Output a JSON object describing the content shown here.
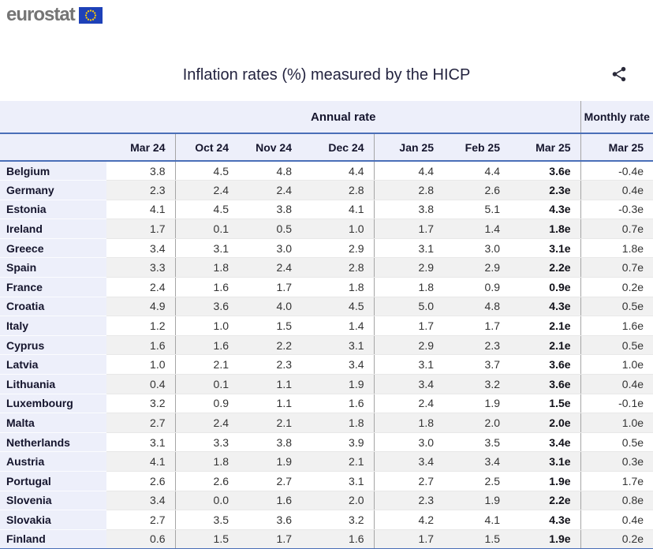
{
  "logo": {
    "text": "eurostat"
  },
  "header": {
    "title": "Inflation rates (%) measured by the HICP"
  },
  "icons": {
    "eu_flag": "eu-flag-icon",
    "share": "share-icon"
  },
  "colors": {
    "accent_blue_line": "#4a6fb8",
    "header_bg": "#edeffa",
    "stripe_bg": "#f1f1f1",
    "divider_gray": "#a5a5a5",
    "logo_gray": "#757575",
    "eu_flag_blue": "#1e41b8",
    "star_yellow": "#ffcc00",
    "text_dark": "#15152d"
  },
  "chart_data": {
    "type": "table",
    "title": "Inflation rates (%) measured by the HICP",
    "column_groups": [
      {
        "label": "Annual rate",
        "span": 7
      },
      {
        "label": "Monthly rate",
        "span": 1
      }
    ],
    "annual_header": "Annual rate",
    "monthly_header": "Monthly rate",
    "columns": [
      "Mar 24",
      "Oct 24",
      "Nov 24",
      "Dec 24",
      "Jan 25",
      "Feb 25",
      "Mar 25"
    ],
    "monthly_column": "Mar 25",
    "rows": [
      {
        "country": "Belgium",
        "annual": [
          "3.8",
          "4.5",
          "4.8",
          "4.4",
          "4.4",
          "4.4",
          "3.6e"
        ],
        "monthly": "-0.4e"
      },
      {
        "country": "Germany",
        "annual": [
          "2.3",
          "2.4",
          "2.4",
          "2.8",
          "2.8",
          "2.6",
          "2.3e"
        ],
        "monthly": "0.4e"
      },
      {
        "country": "Estonia",
        "annual": [
          "4.1",
          "4.5",
          "3.8",
          "4.1",
          "3.8",
          "5.1",
          "4.3e"
        ],
        "monthly": "-0.3e"
      },
      {
        "country": "Ireland",
        "annual": [
          "1.7",
          "0.1",
          "0.5",
          "1.0",
          "1.7",
          "1.4",
          "1.8e"
        ],
        "monthly": "0.7e"
      },
      {
        "country": "Greece",
        "annual": [
          "3.4",
          "3.1",
          "3.0",
          "2.9",
          "3.1",
          "3.0",
          "3.1e"
        ],
        "monthly": "1.8e"
      },
      {
        "country": "Spain",
        "annual": [
          "3.3",
          "1.8",
          "2.4",
          "2.8",
          "2.9",
          "2.9",
          "2.2e"
        ],
        "monthly": "0.7e"
      },
      {
        "country": "France",
        "annual": [
          "2.4",
          "1.6",
          "1.7",
          "1.8",
          "1.8",
          "0.9",
          "0.9e"
        ],
        "monthly": "0.2e"
      },
      {
        "country": "Croatia",
        "annual": [
          "4.9",
          "3.6",
          "4.0",
          "4.5",
          "5.0",
          "4.8",
          "4.3e"
        ],
        "monthly": "0.5e"
      },
      {
        "country": "Italy",
        "annual": [
          "1.2",
          "1.0",
          "1.5",
          "1.4",
          "1.7",
          "1.7",
          "2.1e"
        ],
        "monthly": "1.6e"
      },
      {
        "country": "Cyprus",
        "annual": [
          "1.6",
          "1.6",
          "2.2",
          "3.1",
          "2.9",
          "2.3",
          "2.1e"
        ],
        "monthly": "0.5e"
      },
      {
        "country": "Latvia",
        "annual": [
          "1.0",
          "2.1",
          "2.3",
          "3.4",
          "3.1",
          "3.7",
          "3.6e"
        ],
        "monthly": "1.0e"
      },
      {
        "country": "Lithuania",
        "annual": [
          "0.4",
          "0.1",
          "1.1",
          "1.9",
          "3.4",
          "3.2",
          "3.6e"
        ],
        "monthly": "0.4e"
      },
      {
        "country": "Luxembourg",
        "annual": [
          "3.2",
          "0.9",
          "1.1",
          "1.6",
          "2.4",
          "1.9",
          "1.5e"
        ],
        "monthly": "-0.1e"
      },
      {
        "country": "Malta",
        "annual": [
          "2.7",
          "2.4",
          "2.1",
          "1.8",
          "1.8",
          "2.0",
          "2.0e"
        ],
        "monthly": "1.0e"
      },
      {
        "country": "Netherlands",
        "annual": [
          "3.1",
          "3.3",
          "3.8",
          "3.9",
          "3.0",
          "3.5",
          "3.4e"
        ],
        "monthly": "0.5e"
      },
      {
        "country": "Austria",
        "annual": [
          "4.1",
          "1.8",
          "1.9",
          "2.1",
          "3.4",
          "3.4",
          "3.1e"
        ],
        "monthly": "0.3e"
      },
      {
        "country": "Portugal",
        "annual": [
          "2.6",
          "2.6",
          "2.7",
          "3.1",
          "2.7",
          "2.5",
          "1.9e"
        ],
        "monthly": "1.7e"
      },
      {
        "country": "Slovenia",
        "annual": [
          "3.4",
          "0.0",
          "1.6",
          "2.0",
          "2.3",
          "1.9",
          "2.2e"
        ],
        "monthly": "0.8e"
      },
      {
        "country": "Slovakia",
        "annual": [
          "2.7",
          "3.5",
          "3.6",
          "3.2",
          "4.2",
          "4.1",
          "4.3e"
        ],
        "monthly": "0.4e"
      },
      {
        "country": "Finland",
        "annual": [
          "0.6",
          "1.5",
          "1.7",
          "1.6",
          "1.7",
          "1.5",
          "1.9e"
        ],
        "monthly": "0.2e"
      }
    ]
  }
}
